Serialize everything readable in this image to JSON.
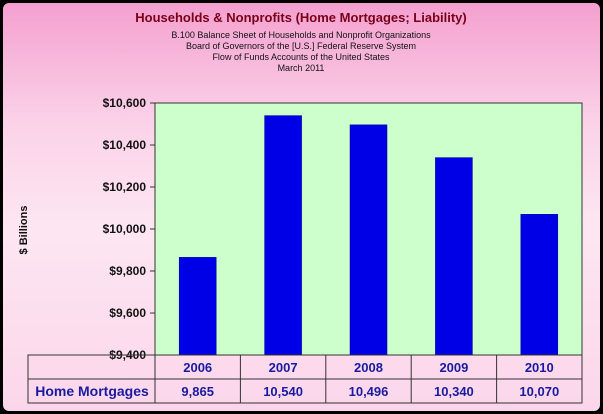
{
  "chart_data": {
    "type": "bar",
    "title": "Households & Nonprofits (Home Mortgages; Liability)",
    "subtitle": [
      "B.100 Balance Sheet of Households and Nonprofit Organizations",
      "Board of Governors of the [U.S.] Federal Reserve System",
      "Flow of Funds Accounts of the United States",
      "March 2011"
    ],
    "ylabel": "$ Billions",
    "xlabel": "",
    "categories": [
      "2006",
      "2007",
      "2008",
      "2009",
      "2010"
    ],
    "series": [
      {
        "name": "Home Mortgages",
        "values": [
          9865,
          10540,
          10496,
          10340,
          10070
        ]
      }
    ],
    "value_labels": [
      "9,865",
      "10,540",
      "10,496",
      "10,340",
      "10,070"
    ],
    "ylim": [
      9400,
      10600
    ],
    "yticks": [
      9400,
      9600,
      9800,
      10000,
      10200,
      10400,
      10600
    ],
    "ytick_labels": [
      "$9,400",
      "$9,600",
      "$9,800",
      "$10,000",
      "$10,200",
      "$10,400",
      "$10,600"
    ],
    "grid": false,
    "legend": "data-table",
    "colors": {
      "bar": "#0000e6",
      "plot_background": "#ccffcc",
      "title": "#7a0018",
      "table_text": "#1a1aa0",
      "frame_background": "#fbd3e9"
    }
  }
}
